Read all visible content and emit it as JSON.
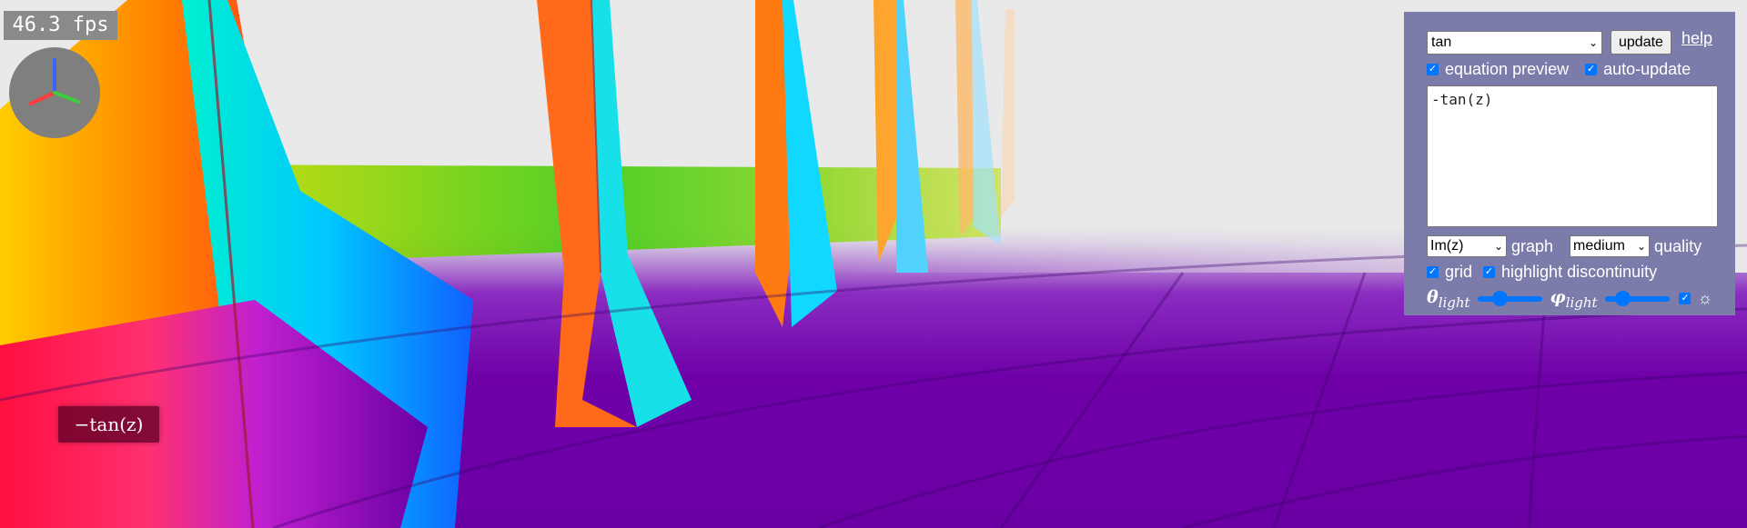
{
  "hud": {
    "fps": "46.3 fps",
    "equation_label": "−tan(z)"
  },
  "panel": {
    "function_select": {
      "selected": "tan"
    },
    "update_label": "update",
    "help_label": "help",
    "equation_preview": {
      "label": "equation preview",
      "checked": true
    },
    "auto_update": {
      "label": "auto-update",
      "checked": true
    },
    "equation_text": "-tan(z)",
    "graph_select": {
      "selected": "Im(z)"
    },
    "graph_label": "graph",
    "quality_select": {
      "selected": "medium"
    },
    "quality_label": "quality",
    "grid": {
      "label": "grid",
      "checked": true
    },
    "highlight_discontinuity": {
      "label": "highlight discontinuity",
      "checked": true
    },
    "theta_light": {
      "symbol": "θ",
      "sub": "light",
      "level": 0.3
    },
    "phi_light": {
      "symbol": "φ",
      "sub": "light",
      "level": 0.2
    },
    "light_toggle": {
      "checked": true,
      "icon": "sun-icon"
    }
  }
}
